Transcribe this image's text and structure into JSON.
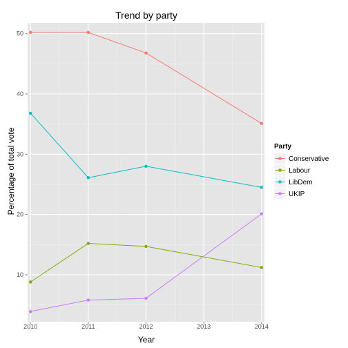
{
  "chart_data": {
    "type": "line",
    "title": "Trend by party",
    "xlabel": "Year",
    "ylabel": "Percentage of total vote",
    "x": [
      2010,
      2011,
      2012,
      2013,
      2014
    ],
    "xlim": [
      2009.95,
      2014.05
    ],
    "ylim": [
      2.2,
      51.8
    ],
    "xticks": [
      "2010",
      "2011",
      "2012",
      "2013",
      "2014"
    ],
    "yticks": [
      "10",
      "20",
      "30",
      "40",
      "50"
    ],
    "grid": true,
    "legend_title": "Party",
    "legend_position": "right",
    "series": [
      {
        "name": "Conservative",
        "color": "#F8766D",
        "points": [
          [
            2010,
            50.2
          ],
          [
            2011,
            50.2
          ],
          [
            2012,
            46.8
          ],
          [
            2014,
            35.1
          ]
        ]
      },
      {
        "name": "Labour",
        "color": "#7CAE00",
        "points": [
          [
            2010,
            8.8
          ],
          [
            2011,
            15.2
          ],
          [
            2012,
            14.7
          ],
          [
            2014,
            11.2
          ]
        ]
      },
      {
        "name": "LibDem",
        "color": "#00BFC4",
        "points": [
          [
            2010,
            36.8
          ],
          [
            2011,
            26.1
          ],
          [
            2012,
            28.0
          ],
          [
            2014,
            24.5
          ]
        ]
      },
      {
        "name": "UKIP",
        "color": "#C77CFF",
        "points": [
          [
            2010,
            3.9
          ],
          [
            2011,
            5.8
          ],
          [
            2012,
            6.1
          ],
          [
            2014,
            20.1
          ]
        ]
      }
    ]
  }
}
